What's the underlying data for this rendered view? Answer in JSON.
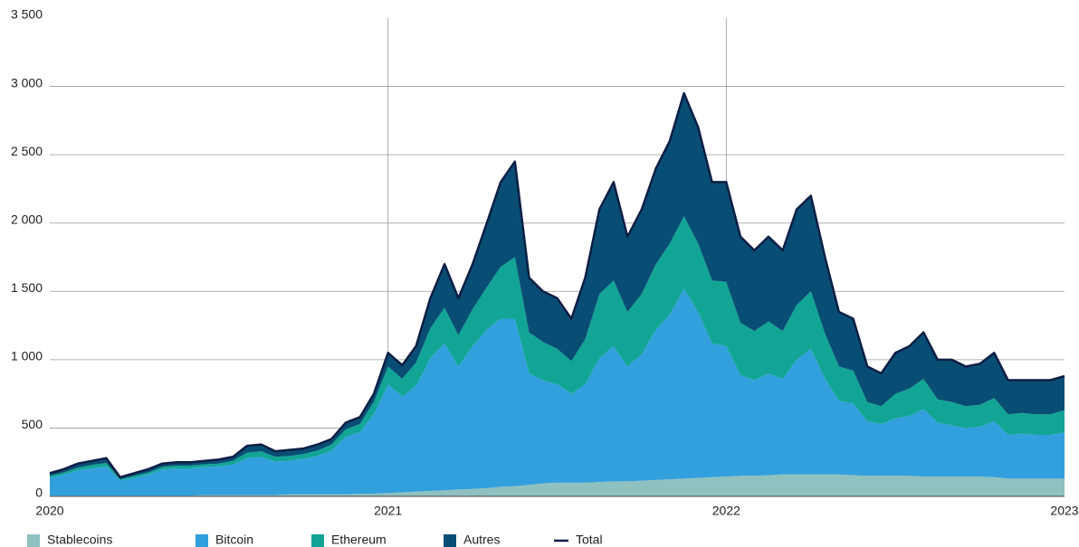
{
  "chart_data": {
    "type": "stacked_area",
    "x": [
      2020,
      2020.042,
      2020.083,
      2020.125,
      2020.167,
      2020.208,
      2020.25,
      2020.292,
      2020.333,
      2020.375,
      2020.417,
      2020.458,
      2020.5,
      2020.542,
      2020.583,
      2020.625,
      2020.667,
      2020.708,
      2020.75,
      2020.792,
      2020.833,
      2020.875,
      2020.917,
      2020.958,
      2021,
      2021.042,
      2021.083,
      2021.125,
      2021.167,
      2021.208,
      2021.25,
      2021.292,
      2021.333,
      2021.375,
      2021.417,
      2021.458,
      2021.5,
      2021.542,
      2021.583,
      2021.625,
      2021.667,
      2021.708,
      2021.75,
      2021.792,
      2021.833,
      2021.875,
      2021.917,
      2021.958,
      2022,
      2022.042,
      2022.083,
      2022.125,
      2022.167,
      2022.208,
      2022.25,
      2022.292,
      2022.333,
      2022.375,
      2022.417,
      2022.458,
      2022.5,
      2022.542,
      2022.583,
      2022.625,
      2022.667,
      2022.708,
      2022.75,
      2022.792,
      2022.833,
      2022.875,
      2022.917,
      2022.958,
      2023
    ],
    "series": [
      {
        "name": "Stablecoins",
        "color": "#8fc1c0",
        "values": [
          5,
          5,
          5,
          5,
          5,
          5,
          5,
          5,
          5,
          5,
          5,
          10,
          10,
          10,
          10,
          10,
          10,
          15,
          15,
          15,
          15,
          15,
          20,
          20,
          25,
          30,
          35,
          40,
          45,
          50,
          55,
          60,
          70,
          75,
          85,
          95,
          100,
          100,
          100,
          105,
          110,
          110,
          115,
          120,
          125,
          130,
          135,
          140,
          145,
          150,
          150,
          155,
          160,
          160,
          160,
          160,
          160,
          155,
          150,
          150,
          150,
          150,
          145,
          145,
          145,
          145,
          145,
          140,
          130,
          130,
          130,
          130,
          130
        ]
      },
      {
        "name": "Bitcoin",
        "color": "#32a0dc",
        "values": [
          130,
          155,
          185,
          200,
          215,
          110,
          130,
          155,
          190,
          200,
          200,
          205,
          210,
          225,
          270,
          280,
          245,
          245,
          260,
          280,
          320,
          420,
          450,
          580,
          795,
          700,
          775,
          970,
          1075,
          900,
          1045,
          1160,
          1230,
          1225,
          815,
          755,
          720,
          650,
          720,
          905,
          990,
          840,
          925,
          1100,
          1205,
          1390,
          1215,
          980,
          955,
          740,
          700,
          745,
          700,
          840,
          920,
          700,
          540,
          525,
          400,
          380,
          420,
          440,
          495,
          395,
          375,
          355,
          365,
          410,
          320,
          330,
          320,
          320,
          340
        ]
      },
      {
        "name": "Ethereum",
        "color": "#12a595",
        "values": [
          15,
          15,
          20,
          25,
          25,
          10,
          15,
          15,
          20,
          20,
          20,
          20,
          20,
          25,
          40,
          40,
          35,
          35,
          35,
          40,
          45,
          55,
          60,
          90,
          130,
          130,
          170,
          220,
          260,
          230,
          270,
          310,
          380,
          450,
          300,
          280,
          260,
          240,
          330,
          470,
          480,
          400,
          440,
          480,
          520,
          530,
          500,
          460,
          470,
          380,
          360,
          380,
          350,
          400,
          420,
          330,
          250,
          240,
          140,
          130,
          180,
          200,
          220,
          170,
          170,
          160,
          160,
          170,
          150,
          150,
          150,
          150,
          160
        ]
      },
      {
        "name": "Autres",
        "color": "#084e74",
        "values": [
          20,
          25,
          30,
          30,
          35,
          15,
          20,
          25,
          25,
          25,
          25,
          25,
          30,
          30,
          50,
          50,
          40,
          45,
          40,
          45,
          40,
          50,
          50,
          60,
          100,
          100,
          120,
          220,
          320,
          270,
          330,
          470,
          620,
          700,
          400,
          370,
          370,
          310,
          450,
          620,
          720,
          550,
          620,
          700,
          750,
          900,
          850,
          720,
          730,
          630,
          590,
          620,
          590,
          700,
          700,
          560,
          400,
          380,
          260,
          240,
          300,
          310,
          340,
          290,
          310,
          290,
          300,
          330,
          250,
          240,
          250,
          250,
          250
        ]
      }
    ],
    "total": {
      "name": "Total",
      "color": "#0c1e45",
      "values": [
        170,
        200,
        240,
        260,
        280,
        140,
        170,
        200,
        240,
        250,
        250,
        260,
        270,
        290,
        370,
        380,
        330,
        340,
        350,
        380,
        420,
        540,
        580,
        750,
        1050,
        960,
        1100,
        1450,
        1700,
        1450,
        1700,
        2000,
        2300,
        2450,
        1600,
        1500,
        1450,
        1300,
        1600,
        2100,
        2300,
        1900,
        2100,
        2400,
        2600,
        2950,
        2700,
        2300,
        2300,
        1900,
        1800,
        1900,
        1800,
        2100,
        2200,
        1750,
        1350,
        1300,
        950,
        900,
        1050,
        1100,
        1200,
        1000,
        1000,
        950,
        970,
        1050,
        850,
        850,
        850,
        850,
        880
      ]
    },
    "xlim": [
      2020,
      2023
    ],
    "xticks": [
      2020,
      2021,
      2022,
      2023
    ],
    "ylim": [
      0,
      3500
    ],
    "yticks": [
      0,
      500,
      {
        "value": 1000,
        "label": "1 000"
      },
      {
        "value": 1500,
        "label": "1 500"
      },
      {
        "value": 2000,
        "label": "2 000"
      },
      {
        "value": 2500,
        "label": "2 500"
      },
      {
        "value": 3000,
        "label": "3 000"
      },
      {
        "value": 3500,
        "label": "3 500"
      }
    ],
    "grid": true,
    "legend": "bottom"
  }
}
